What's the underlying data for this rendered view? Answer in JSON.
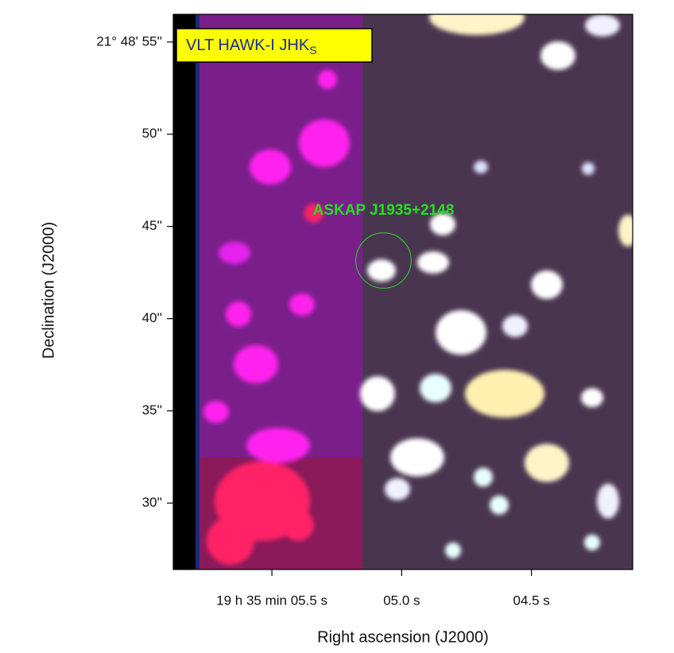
{
  "chart_data": {
    "type": "image",
    "title": {
      "text": "VLT HAWK-I JHK",
      "subscript": "S"
    },
    "annotation": {
      "text": "ASKAP J1935+2148",
      "color": "#22e022"
    },
    "marker": {
      "x": 5.07,
      "y": 43.15,
      "radius": 1.5,
      "color": "#22e022"
    },
    "x_label": "Right ascension (J2000)",
    "y_label": "Declination (J2000)",
    "xlim": [
      5.88,
      4.11
    ],
    "ylim": [
      26.4,
      56.5
    ],
    "xticks": [
      {
        "value": 5.5,
        "label": "19 h 35 min 05.5 s"
      },
      {
        "value": 5.0,
        "label": "05.0 s"
      },
      {
        "value": 4.5,
        "label": "04.5 s"
      }
    ],
    "yticks": [
      {
        "value": 55,
        "label": "21° 48' 55''"
      },
      {
        "value": 50,
        "label": "50''"
      },
      {
        "value": 45,
        "label": "45''"
      },
      {
        "value": 40,
        "label": "40''"
      },
      {
        "value": 35,
        "label": "35''"
      },
      {
        "value": 30,
        "label": "30''"
      }
    ]
  }
}
